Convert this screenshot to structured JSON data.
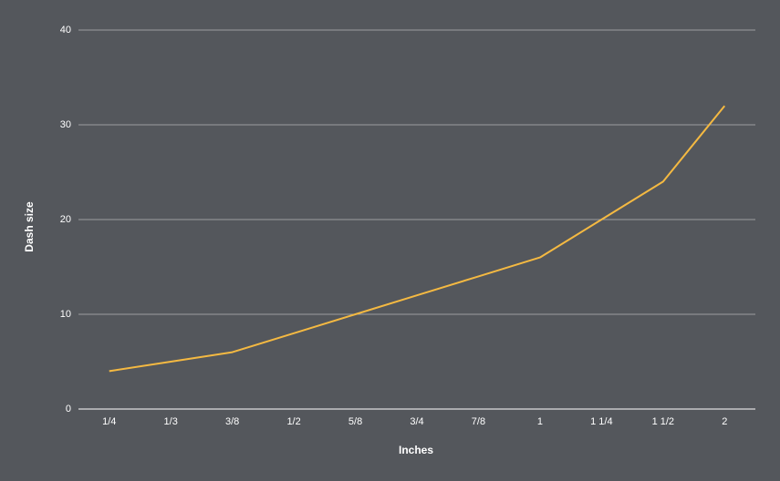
{
  "chart_data": {
    "type": "line",
    "x_label": "Inches",
    "y_label": "Dash size",
    "categories": [
      "1/4",
      "1/3",
      "3/8",
      "1/2",
      "5/8",
      "3/4",
      "7/8",
      "1",
      "1 1/4",
      "1 1/2",
      "2"
    ],
    "values": [
      4,
      5,
      6,
      8,
      10,
      12,
      14,
      16,
      20,
      24,
      32
    ],
    "color": "#f4b942",
    "ylim": [
      0,
      40
    ],
    "yticks": [
      0,
      10,
      20,
      30,
      40
    ],
    "grid": true
  }
}
